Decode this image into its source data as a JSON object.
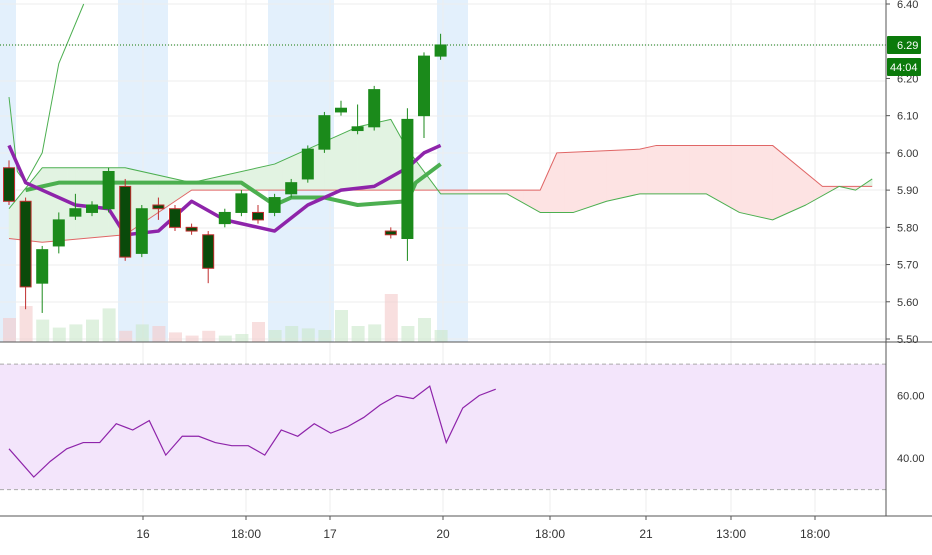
{
  "colors": {
    "up": "#1b8a1b",
    "down": "#c02d2d",
    "up_wick": "#1b8a1b",
    "down_wick": "#c02d2d",
    "session_band": "#e3f0fc",
    "grid": "#eeeeee",
    "axis_text": "#333333",
    "cloud_bull": "#e2f3e2",
    "cloud_bear": "#fde3e3",
    "senkou_a": "#e06666",
    "senkou_b": "#4caf50",
    "tenkan": "#8e24aa",
    "kijun": "#4caf50",
    "rsi_line": "#8e24aa",
    "rsi_band": "#f3e5fb",
    "price_tag": "#0b7a0b"
  },
  "price_panel": {
    "y_ticks": [
      "6.40",
      "6.20",
      "6.10",
      "6.00",
      "5.90",
      "5.80",
      "5.70",
      "5.60",
      "5.50"
    ],
    "last_price": "6.29",
    "countdown": "44:04"
  },
  "rsi_panel": {
    "y_ticks": [
      "60.00",
      "40.00"
    ]
  },
  "time_axis": {
    "labels": [
      "16",
      "18:00",
      "17",
      "20",
      "18:00",
      "21",
      "13:00",
      "18:00"
    ]
  },
  "chart_data": {
    "type": "candlestick",
    "price_range": [
      5.5,
      6.4
    ],
    "rsi_range": [
      27,
      71
    ],
    "rsi_levels": [
      70,
      30
    ],
    "candles": [
      {
        "o": 5.96,
        "h": 5.98,
        "l": 5.86,
        "c": 5.87
      },
      {
        "o": 5.87,
        "h": 5.88,
        "l": 5.58,
        "c": 5.64
      },
      {
        "o": 5.65,
        "h": 5.75,
        "l": 5.57,
        "c": 5.74
      },
      {
        "o": 5.75,
        "h": 5.84,
        "l": 5.73,
        "c": 5.82
      },
      {
        "o": 5.83,
        "h": 5.89,
        "l": 5.82,
        "c": 5.85
      },
      {
        "o": 5.84,
        "h": 5.87,
        "l": 5.83,
        "c": 5.86
      },
      {
        "o": 5.85,
        "h": 5.96,
        "l": 5.84,
        "c": 5.95
      },
      {
        "o": 5.91,
        "h": 5.93,
        "l": 5.71,
        "c": 5.72
      },
      {
        "o": 5.73,
        "h": 5.86,
        "l": 5.72,
        "c": 5.85
      },
      {
        "o": 5.86,
        "h": 5.88,
        "l": 5.82,
        "c": 5.85
      },
      {
        "o": 5.85,
        "h": 5.86,
        "l": 5.79,
        "c": 5.8
      },
      {
        "o": 5.8,
        "h": 5.81,
        "l": 5.78,
        "c": 5.79
      },
      {
        "o": 5.78,
        "h": 5.79,
        "l": 5.65,
        "c": 5.69
      },
      {
        "o": 5.81,
        "h": 5.85,
        "l": 5.8,
        "c": 5.84
      },
      {
        "o": 5.84,
        "h": 5.9,
        "l": 5.83,
        "c": 5.89
      },
      {
        "o": 5.84,
        "h": 5.86,
        "l": 5.81,
        "c": 5.82
      },
      {
        "o": 5.84,
        "h": 5.89,
        "l": 5.83,
        "c": 5.88
      },
      {
        "o": 5.89,
        "h": 5.93,
        "l": 5.88,
        "c": 5.92
      },
      {
        "o": 5.93,
        "h": 6.02,
        "l": 5.92,
        "c": 6.01
      },
      {
        "o": 6.01,
        "h": 6.11,
        "l": 6.0,
        "c": 6.1
      },
      {
        "o": 6.11,
        "h": 6.14,
        "l": 6.1,
        "c": 6.12
      },
      {
        "o": 6.06,
        "h": 6.13,
        "l": 6.05,
        "c": 6.07
      },
      {
        "o": 6.07,
        "h": 6.18,
        "l": 6.06,
        "c": 6.17
      },
      {
        "o": 5.79,
        "h": 5.8,
        "l": 5.77,
        "c": 5.78
      },
      {
        "o": 5.77,
        "h": 6.12,
        "l": 5.71,
        "c": 6.09
      },
      {
        "o": 6.1,
        "h": 6.27,
        "l": 6.04,
        "c": 6.26
      },
      {
        "o": 6.26,
        "h": 6.32,
        "l": 6.25,
        "c": 6.29
      }
    ],
    "volume": [
      0.3,
      0.45,
      0.28,
      0.18,
      0.22,
      0.28,
      0.42,
      0.14,
      0.22,
      0.2,
      0.12,
      0.08,
      0.14,
      0.08,
      0.1,
      0.25,
      0.15,
      0.2,
      0.17,
      0.15,
      0.4,
      0.2,
      0.22,
      0.6,
      0.2,
      0.3,
      0.15
    ],
    "tenkan": [
      [
        0,
        6.02
      ],
      [
        1,
        5.92
      ],
      [
        4,
        5.86
      ],
      [
        6,
        5.85
      ],
      [
        7,
        5.78
      ],
      [
        9,
        5.79
      ],
      [
        11,
        5.87
      ],
      [
        13,
        5.82
      ],
      [
        15,
        5.8
      ],
      [
        16,
        5.79
      ],
      [
        18,
        5.86
      ],
      [
        20,
        5.9
      ],
      [
        22,
        5.91
      ],
      [
        24,
        5.96
      ],
      [
        25,
        6.0
      ],
      [
        26,
        6.02
      ]
    ],
    "kijun": [
      [
        1,
        5.9
      ],
      [
        3,
        5.92
      ],
      [
        7,
        5.92
      ],
      [
        11,
        5.92
      ],
      [
        14,
        5.92
      ],
      [
        16,
        5.86
      ],
      [
        17,
        5.88
      ],
      [
        19,
        5.88
      ],
      [
        21,
        5.86
      ],
      [
        24,
        5.87
      ],
      [
        24.5,
        5.92
      ],
      [
        26,
        5.97
      ]
    ],
    "senkou_a": [
      [
        0,
        5.77
      ],
      [
        2,
        5.76
      ],
      [
        7,
        5.78
      ],
      [
        11,
        5.9
      ],
      [
        16,
        5.9
      ],
      [
        24,
        5.9
      ],
      [
        26,
        5.9
      ],
      [
        32,
        5.9
      ],
      [
        33,
        6.0
      ],
      [
        38,
        6.01
      ],
      [
        39,
        6.02
      ],
      [
        46,
        6.02
      ],
      [
        49,
        5.91
      ],
      [
        52,
        5.91
      ]
    ],
    "senkou_b": [
      [
        0,
        5.85
      ],
      [
        2,
        5.96
      ],
      [
        7,
        5.96
      ],
      [
        11,
        5.92
      ],
      [
        16,
        5.97
      ],
      [
        21,
        6.07
      ],
      [
        23,
        6.09
      ],
      [
        24,
        6.01
      ],
      [
        26,
        5.89
      ],
      [
        30,
        5.89
      ],
      [
        32,
        5.84
      ],
      [
        34,
        5.84
      ],
      [
        36,
        5.87
      ],
      [
        38,
        5.89
      ],
      [
        42,
        5.89
      ],
      [
        44,
        5.84
      ],
      [
        46,
        5.82
      ],
      [
        48,
        5.86
      ],
      [
        50,
        5.91
      ],
      [
        51,
        5.9
      ],
      [
        52,
        5.93
      ]
    ],
    "chikou": [
      [
        0,
        6.15
      ],
      [
        0.5,
        5.95
      ],
      [
        1,
        5.92
      ],
      [
        2,
        6.0
      ],
      [
        3,
        6.24
      ],
      [
        4.5,
        6.4
      ]
    ],
    "rsi": [
      [
        0,
        43
      ],
      [
        1.5,
        34
      ],
      [
        2.5,
        39
      ],
      [
        3.5,
        43
      ],
      [
        4.5,
        45
      ],
      [
        5.5,
        45
      ],
      [
        6.5,
        51
      ],
      [
        7.5,
        49
      ],
      [
        8.5,
        52
      ],
      [
        9.5,
        41
      ],
      [
        10.5,
        47
      ],
      [
        11.5,
        47
      ],
      [
        12.5,
        45
      ],
      [
        13.5,
        44
      ],
      [
        14.5,
        44
      ],
      [
        15.5,
        41
      ],
      [
        16.5,
        49
      ],
      [
        17.5,
        47
      ],
      [
        18.5,
        51
      ],
      [
        19.5,
        48
      ],
      [
        20.5,
        50
      ],
      [
        21.5,
        53
      ],
      [
        22.5,
        57
      ],
      [
        23.5,
        60
      ],
      [
        24.5,
        59
      ],
      [
        25.5,
        63
      ],
      [
        26.5,
        45
      ],
      [
        27.5,
        56
      ],
      [
        28.5,
        60
      ],
      [
        29.5,
        62
      ]
    ]
  }
}
